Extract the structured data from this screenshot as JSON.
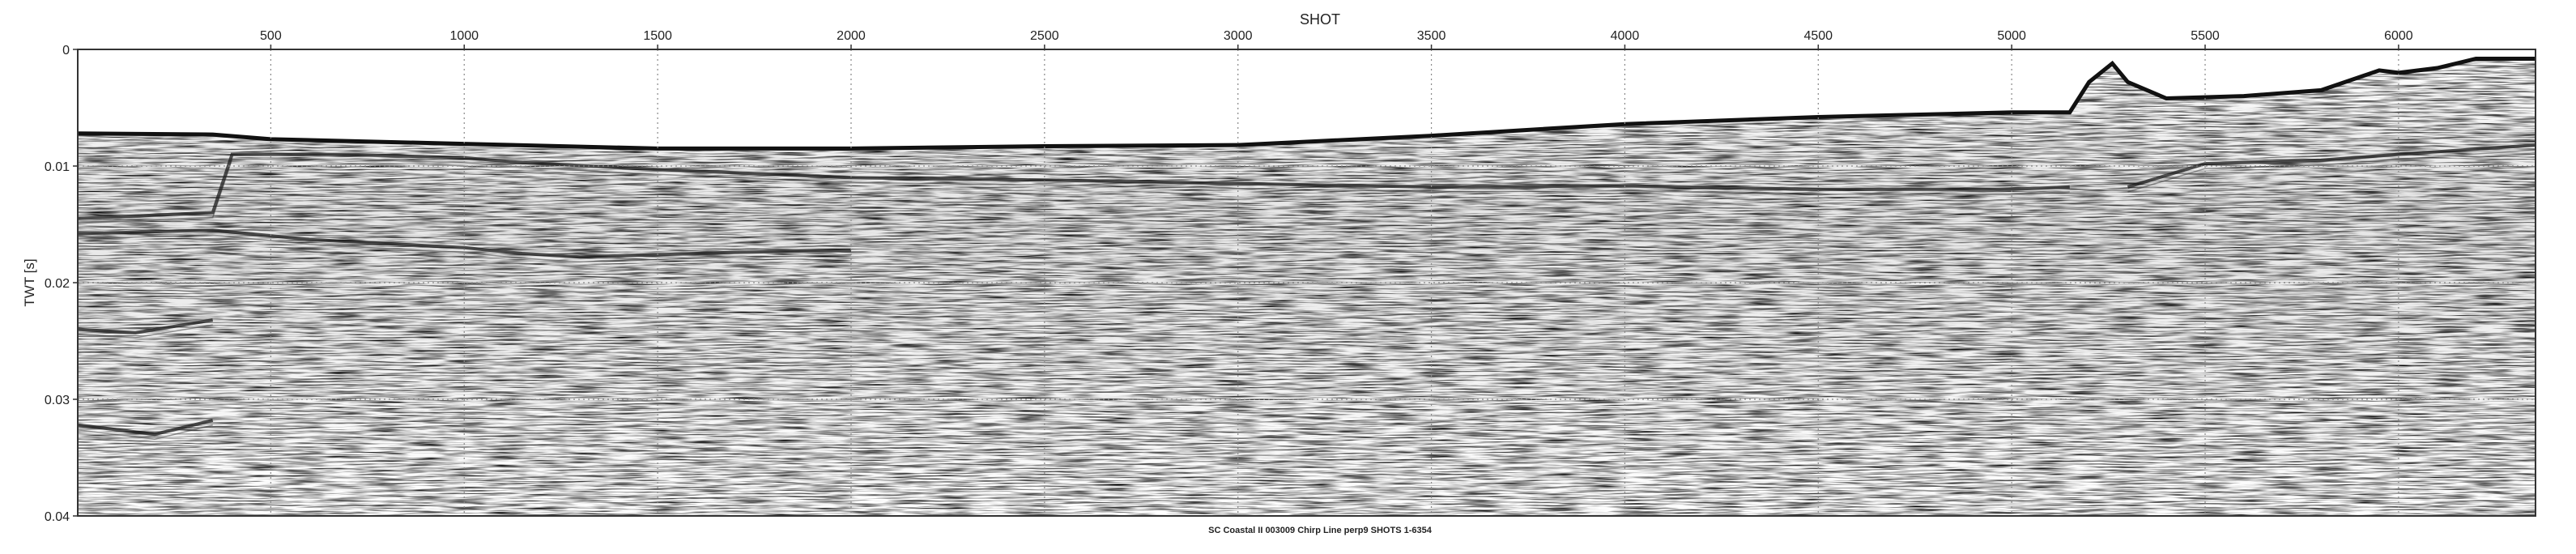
{
  "chart_data": {
    "type": "heatmap",
    "title": "",
    "xlabel": "SHOT",
    "ylabel": "TWT [s]",
    "caption": "SC Coastal II 003009 Chirp Line perp9 SHOTS 1-6354",
    "xlim": [
      1,
      6354
    ],
    "ylim": [
      0,
      0.04
    ],
    "y_inverted": true,
    "x_ticks": [
      500,
      1000,
      1500,
      2000,
      2500,
      3000,
      3500,
      4000,
      4500,
      5000,
      5500,
      6000
    ],
    "x_tick_labels": [
      "500",
      "1000",
      "1500",
      "2000",
      "2500",
      "3000",
      "3500",
      "4000",
      "4500",
      "5000",
      "5500",
      "6000"
    ],
    "y_ticks": [
      0,
      0.01,
      0.02,
      0.03,
      0.04
    ],
    "y_tick_labels": [
      "0",
      "0.01",
      "0.02",
      "0.03",
      "0.04"
    ],
    "grid": true,
    "grid_style": "dotted",
    "colormap": "grayscale seismic amplitude",
    "colors": {
      "grid": "#888888",
      "frame": "#333333",
      "seafloor": "#111111",
      "background": "#ffffff"
    },
    "seafloor_horizon": {
      "x": [
        1,
        350,
        500,
        1000,
        1500,
        2000,
        2500,
        3000,
        3500,
        4000,
        4500,
        5000,
        5150,
        5200,
        5260,
        5300,
        5400,
        5600,
        5800,
        5950,
        6000,
        6100,
        6200,
        6354
      ],
      "twt": [
        0.0072,
        0.0073,
        0.0077,
        0.0081,
        0.0085,
        0.0085,
        0.0083,
        0.0082,
        0.0074,
        0.0064,
        0.0058,
        0.0054,
        0.0054,
        0.0028,
        0.0012,
        0.0028,
        0.0042,
        0.004,
        0.0035,
        0.0018,
        0.002,
        0.0016,
        0.0008,
        0.0008
      ]
    },
    "reflectors": [
      {
        "name": "",
        "x": [
          1,
          350,
          400,
          700,
          1000,
          1150,
          1500,
          2000,
          2500,
          3000,
          3500,
          4000,
          4500,
          5000,
          5150
        ],
        "twt": [
          0.0145,
          0.014,
          0.009,
          0.009,
          0.0093,
          0.0097,
          0.0103,
          0.011,
          0.0112,
          0.0115,
          0.0118,
          0.0117,
          0.012,
          0.012,
          0.0118
        ]
      },
      {
        "name": "",
        "x": [
          1,
          350,
          600,
          1000,
          1150,
          1300,
          1700,
          2000
        ],
        "twt": [
          0.0158,
          0.0155,
          0.0163,
          0.017,
          0.0175,
          0.0178,
          0.0174,
          0.0172
        ]
      },
      {
        "name": "",
        "x": [
          1,
          150,
          350
        ],
        "twt": [
          0.024,
          0.0243,
          0.0232
        ]
      },
      {
        "name": "",
        "x": [
          1,
          200,
          350
        ],
        "twt": [
          0.0322,
          0.033,
          0.0318
        ]
      },
      {
        "name": "",
        "x": [
          5300,
          5500,
          5800,
          6000,
          6354
        ],
        "twt": [
          0.0118,
          0.0098,
          0.0095,
          0.009,
          0.0082
        ]
      }
    ]
  }
}
